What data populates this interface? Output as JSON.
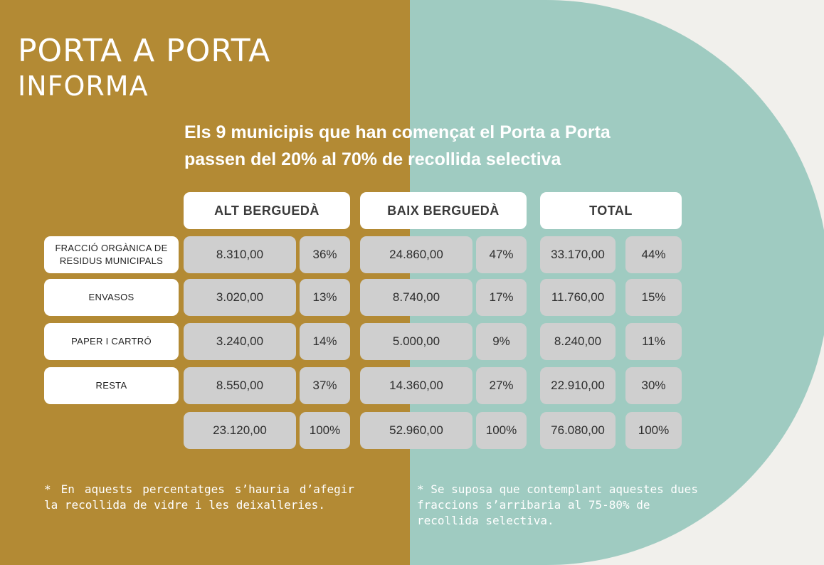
{
  "colors": {
    "ochre": "#b38a34",
    "teal": "#9fcbc1",
    "page": "#f1f0ec",
    "cell": "#cfcfcf"
  },
  "title": {
    "line1": "PORTA A PORTA",
    "line2": "INFORMA"
  },
  "headline": {
    "line1": "Els 9 municipis que han començat el Porta a Porta",
    "line2": "passen del 20% al 70% de recollida selectiva"
  },
  "columns": [
    "ALT BERGUEDÀ",
    "BAIX BERGUEDÀ",
    "TOTAL"
  ],
  "row_labels": [
    {
      "line1": "FRACCIÓ ORGÀNICA DE",
      "line2": "RESIDUS MUNICIPALS"
    },
    {
      "line1": "ENVASOS",
      "line2": ""
    },
    {
      "line1": "PAPER I CARTRÓ",
      "line2": ""
    },
    {
      "line1": "RESTA",
      "line2": ""
    }
  ],
  "rows": [
    {
      "alt": [
        "8.310,00",
        "36%"
      ],
      "baix": [
        "24.860,00",
        "47%"
      ],
      "total": [
        "33.170,00",
        "44%"
      ]
    },
    {
      "alt": [
        "3.020,00",
        "13%"
      ],
      "baix": [
        "8.740,00",
        "17%"
      ],
      "total": [
        "11.760,00",
        "15%"
      ]
    },
    {
      "alt": [
        "3.240,00",
        "14%"
      ],
      "baix": [
        "5.000,00",
        "9%"
      ],
      "total": [
        "8.240,00",
        "11%"
      ]
    },
    {
      "alt": [
        "8.550,00",
        "37%"
      ],
      "baix": [
        "14.360,00",
        "27%"
      ],
      "total": [
        "22.910,00",
        "30%"
      ]
    },
    {
      "alt": [
        "23.120,00",
        "100%"
      ],
      "baix": [
        "52.960,00",
        "100%"
      ],
      "total": [
        "76.080,00",
        "100%"
      ]
    }
  ],
  "notes": {
    "left": "* En aquests percentatges s’hauria d’afegir la recollida de vidre i les deixalleries.",
    "right": "* Se suposa que contemplant aquestes dues fraccions s’arribaria al 75-80% de recollida selectiva."
  }
}
